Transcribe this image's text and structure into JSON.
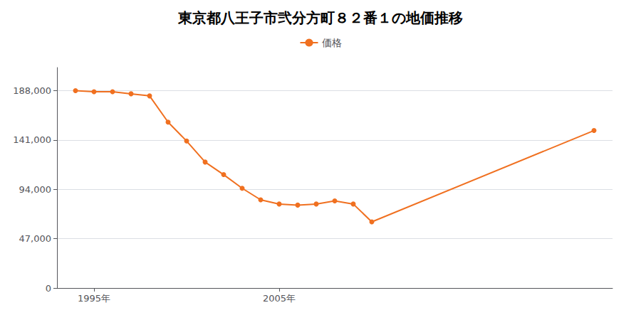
{
  "chart_data": {
    "type": "line",
    "title": "東京都八王子市弐分方町８２番１の地価推移",
    "x": [
      1994,
      1995,
      1996,
      1997,
      1998,
      1999,
      2000,
      2001,
      2002,
      2003,
      2004,
      2005,
      2006,
      2007,
      2008,
      2009,
      2010,
      2022
    ],
    "series": [
      {
        "name": "価格",
        "color": "#f07020",
        "marker": "circle",
        "values": [
          188000,
          187000,
          187000,
          185000,
          183000,
          158000,
          140000,
          120000,
          108000,
          95000,
          84000,
          80000,
          79000,
          80000,
          83000,
          80000,
          63000,
          150000
        ]
      }
    ],
    "xlim": [
      1993,
      2023
    ],
    "xticks": [
      {
        "value": 1995,
        "label": "1995年"
      },
      {
        "value": 2005,
        "label": "2005年"
      }
    ],
    "ylim": [
      0,
      210000
    ],
    "yticks": [
      0,
      {
        "value": 47000,
        "label": "47,000"
      },
      {
        "value": 94000,
        "label": "94,000"
      },
      {
        "value": 141000,
        "label": "141,000"
      },
      {
        "value": 188000,
        "label": "188,000"
      }
    ],
    "grid": true,
    "legend": "top"
  }
}
